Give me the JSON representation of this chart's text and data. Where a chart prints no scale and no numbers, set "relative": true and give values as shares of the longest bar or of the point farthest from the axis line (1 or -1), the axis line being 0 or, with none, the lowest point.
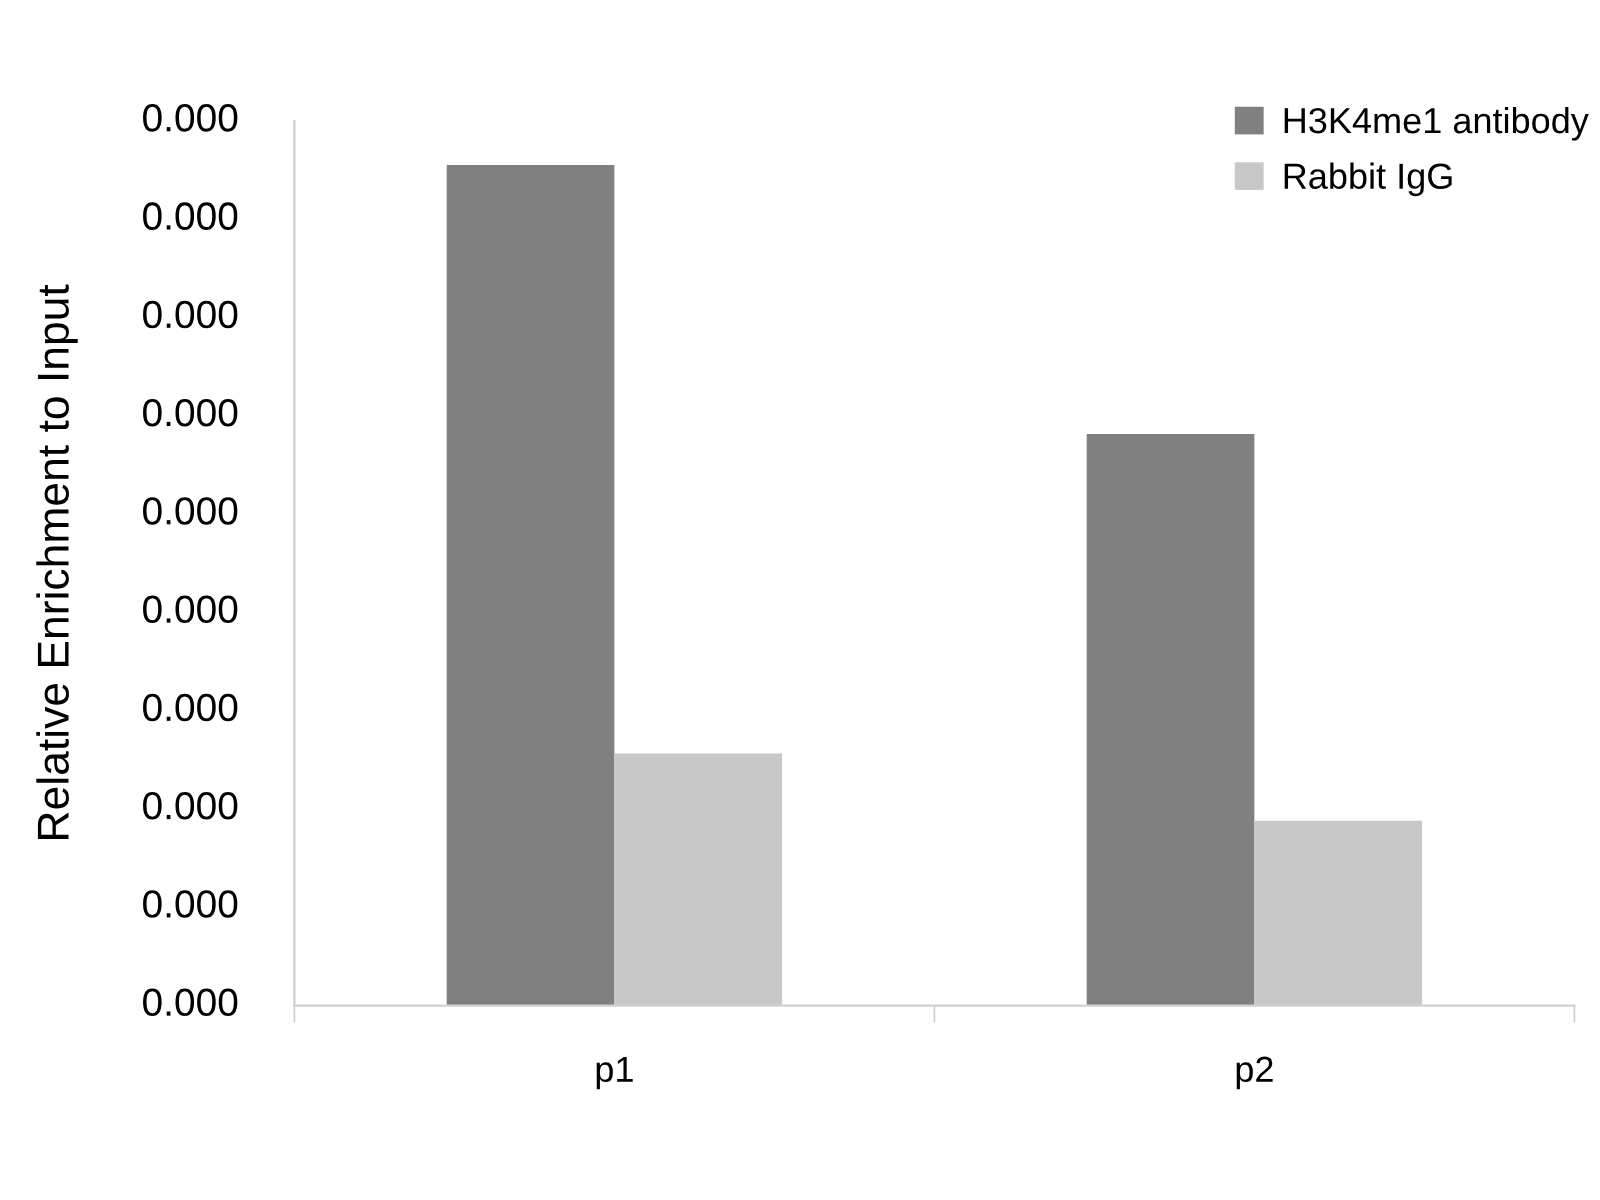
{
  "chart_data": {
    "type": "bar",
    "ylabel": "Relative Enrichment to Input",
    "relative": true,
    "categories": [
      "p1",
      "p2"
    ],
    "series": [
      {
        "name": "H3K4me1 antibody",
        "color": "#808080",
        "values": [
          1,
          0.68
        ]
      },
      {
        "name": "Rabbit IgG",
        "color": "#c8c8c8",
        "values": [
          0.3,
          0.22
        ]
      }
    ],
    "annotations": [
      "0.000",
      "0.000",
      "0.000",
      "0.000",
      "0.000",
      "0.000",
      "0.000",
      "0.000",
      "0.000",
      "0.000"
    ],
    "legend": "top right"
  }
}
